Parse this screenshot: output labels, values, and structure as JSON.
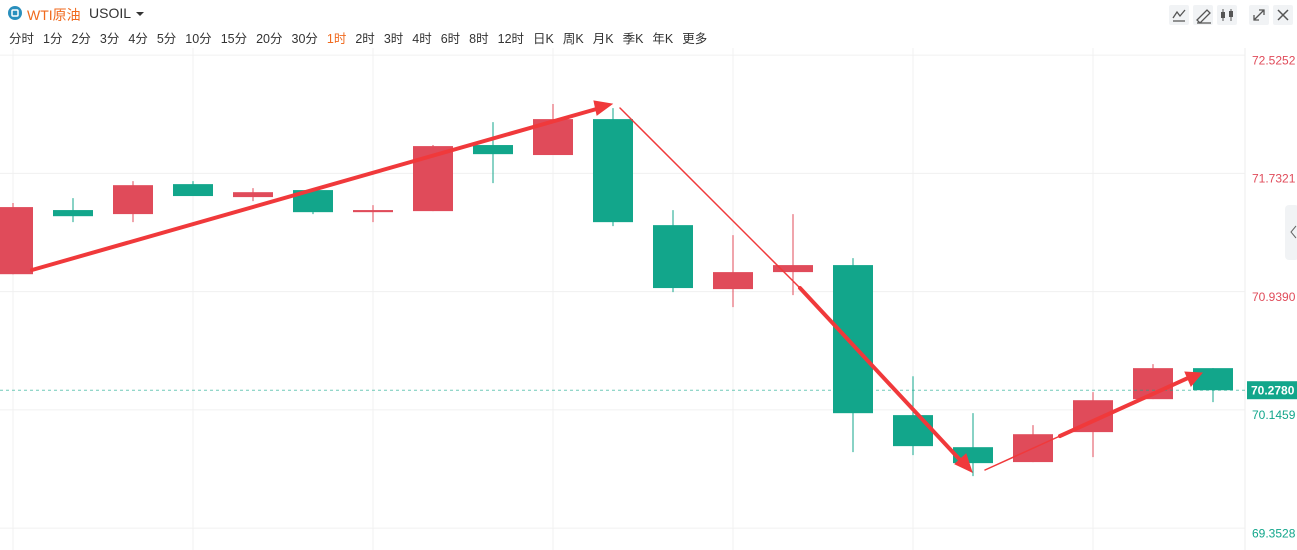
{
  "toolbar": {
    "name": "WTI原油",
    "symbol": "USOIL",
    "intervals": [
      "分时",
      "1分",
      "2分",
      "3分",
      "4分",
      "5分",
      "10分",
      "15分",
      "20分",
      "30分",
      "1时",
      "2时",
      "3时",
      "4时",
      "6时",
      "8时",
      "12时",
      "日K",
      "周K",
      "月K",
      "季K",
      "年K",
      "更多"
    ],
    "active_interval": 10
  },
  "chart_data": {
    "type": "candlestick",
    "categories": [
      null,
      null,
      null,
      null,
      null,
      null,
      null,
      null,
      null,
      null,
      null,
      null,
      null,
      null,
      null,
      null,
      null,
      null,
      null,
      null,
      null
    ],
    "open": [
      71.056,
      71.486,
      71.459,
      71.66,
      71.573,
      71.62,
      71.472,
      71.479,
      71.922,
      71.855,
      72.096,
      71.385,
      70.956,
      71.07,
      71.117,
      70.111,
      69.896,
      69.796,
      69.997,
      70.218,
      70.426
    ],
    "high": [
      71.533,
      71.566,
      71.68,
      71.68,
      71.633,
      71.62,
      71.519,
      71.922,
      72.076,
      72.197,
      72.17,
      71.486,
      71.318,
      71.459,
      71.164,
      70.372,
      70.124,
      70.044,
      70.265,
      70.453,
      70.426
    ],
    "low": [
      71.056,
      71.405,
      71.405,
      71.58,
      71.546,
      71.459,
      71.405,
      71.479,
      71.667,
      71.855,
      71.378,
      70.936,
      70.835,
      70.916,
      69.863,
      69.843,
      69.702,
      69.796,
      69.829,
      70.218,
      70.198
    ],
    "close": [
      71.506,
      71.445,
      71.653,
      71.58,
      71.606,
      71.472,
      71.486,
      71.915,
      71.861,
      72.096,
      71.405,
      70.963,
      71.07,
      71.117,
      70.124,
      69.903,
      69.789,
      69.983,
      70.211,
      70.426,
      70.278
    ],
    "up_color": "#e04b5a",
    "down_color": "#12a68b",
    "ylim": [
      69.24,
      72.66
    ],
    "yticks": [
      72.5252,
      71.7321,
      {
        "value": 70.939,
        "label": "70.9390"
      },
      70.1459,
      69.3528
    ],
    "last_price": {
      "value": 70.278,
      "label": "70.2780"
    },
    "grid": true
  }
}
